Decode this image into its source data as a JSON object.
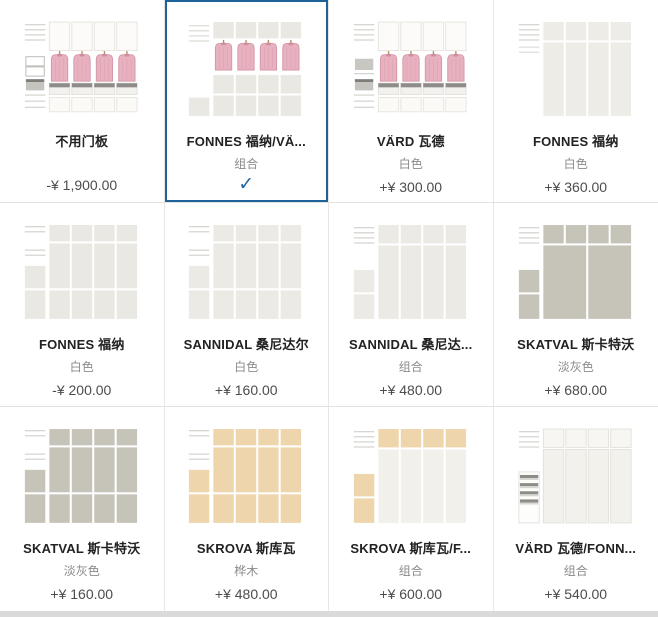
{
  "palette": {
    "selected_border": "#1d6399",
    "check_color": "#2465a0",
    "shirt_pink": "#e7b1bf",
    "gray_door": "#c6c3b9",
    "birch_door": "#eed5ab",
    "white_door": "#eceae4",
    "separator": "#e1e1df",
    "bottom_strip": "#dadada"
  },
  "check_glyph": "✓",
  "cards": [
    {
      "title": "不用门板",
      "subtitle": "",
      "price": "-¥ 1,900.00",
      "selected": false,
      "image": {
        "kind": "open",
        "left_mid": "drawers"
      }
    },
    {
      "title": "FONNES 福纳/VÄ...",
      "subtitle": "组合",
      "price": "",
      "selected": true,
      "check_icon": "✓",
      "image": {
        "kind": "shirts_muted",
        "panel": "#e9e8e2"
      }
    },
    {
      "title": "VÄRD 瓦德",
      "subtitle": "白色",
      "price": "+¥ 300.00",
      "selected": false,
      "image": {
        "kind": "open",
        "left_mid": "block"
      }
    },
    {
      "title": "FONNES 福纳",
      "subtitle": "白色",
      "price": "+¥ 360.00",
      "selected": false,
      "image": {
        "kind": "tall",
        "top": "#edece6",
        "door": "#edece6",
        "panels": 4,
        "left": "plain"
      }
    },
    {
      "title": "FONNES 福纳",
      "subtitle": "白色",
      "price": "-¥ 200.00",
      "selected": false,
      "image": {
        "kind": "grid3",
        "panel": "#e9e8e2"
      }
    },
    {
      "title": "SANNIDAL 桑尼达尔",
      "subtitle": "白色",
      "price": "+¥ 160.00",
      "selected": false,
      "image": {
        "kind": "grid3",
        "panel": "#eceae4"
      }
    },
    {
      "title": "SANNIDAL 桑尼达...",
      "subtitle": "组合",
      "price": "+¥ 480.00",
      "selected": false,
      "image": {
        "kind": "tall",
        "top": "#eceae4",
        "door": "#eceae4",
        "panels": 4,
        "left": "blocks",
        "block": "#eceae4"
      }
    },
    {
      "title": "SKATVAL 斯卡特沃",
      "subtitle": "淡灰色",
      "price": "+¥ 680.00",
      "selected": false,
      "image": {
        "kind": "tall",
        "top": "#c6c3b9",
        "door": "#c6c3b9",
        "panels": 2,
        "left": "blocks",
        "block": "#c6c3b9"
      }
    },
    {
      "title": "SKATVAL 斯卡特沃",
      "subtitle": "淡灰色",
      "price": "+¥ 160.00",
      "selected": false,
      "image": {
        "kind": "grid3",
        "panel": "#c6c3b9"
      }
    },
    {
      "title": "SKROVA 斯库瓦",
      "subtitle": "桦木",
      "price": "+¥ 480.00",
      "selected": false,
      "image": {
        "kind": "grid3",
        "panel": "#eed5ab"
      }
    },
    {
      "title": "SKROVA 斯库瓦/F...",
      "subtitle": "组合",
      "price": "+¥ 600.00",
      "selected": false,
      "image": {
        "kind": "tall",
        "top": "#eed5ab",
        "door": "#f1f0ea",
        "panels": 4,
        "left": "blocks",
        "block": "#eed5ab"
      }
    },
    {
      "title": "VÄRD 瓦德/FONN...",
      "subtitle": "组合",
      "price": "+¥ 540.00",
      "selected": false,
      "image": {
        "kind": "tall",
        "top": "#f7f6f2",
        "door": "#f2f1ec",
        "panels": 4,
        "left": "drawers",
        "stroke": "#e2e0da"
      }
    }
  ]
}
